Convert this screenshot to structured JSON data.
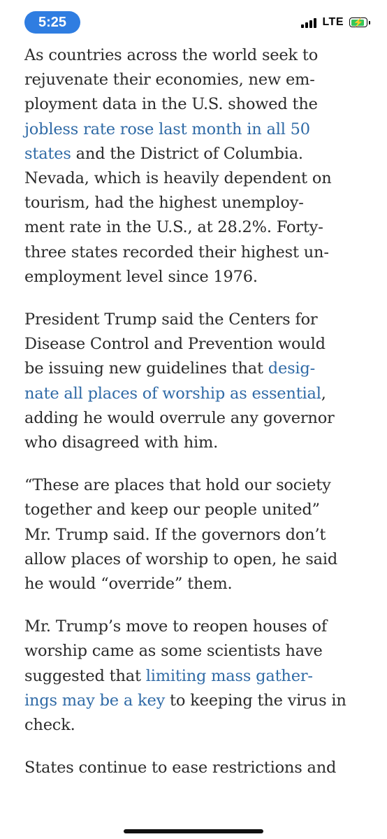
{
  "status_bar": {
    "time": "5:25",
    "network": "LTE",
    "battery_color": "#35c759",
    "battery_level": 0.9,
    "signal_bars": 4
  },
  "colors": {
    "link": "#2f6aa6",
    "text": "#2a2a2a",
    "time_pill": "#2f7de1"
  },
  "paragraphs": [
    [
      [
        {
          "t": "As countries across the world seek to"
        }
      ],
      [
        {
          "t": "rejuvenate their economies, new em-"
        }
      ],
      [
        {
          "t": "ployment data in the U.S. showed the"
        }
      ],
      [
        {
          "t": "jobless rate rose last month in all 50",
          "link": true
        }
      ],
      [
        {
          "t": "states",
          "link": true
        },
        {
          "t": " and the District of Columbia."
        }
      ],
      [
        {
          "t": "Nevada, which is heavily dependent on"
        }
      ],
      [
        {
          "t": "tourism, had the highest unemploy-"
        }
      ],
      [
        {
          "t": "ment rate in the U.S., at 28.2%. Forty-"
        }
      ],
      [
        {
          "t": "three states recorded their highest un-"
        }
      ],
      [
        {
          "t": "employment level since 1976."
        }
      ]
    ],
    [
      [
        {
          "t": "President Trump said the Centers for"
        }
      ],
      [
        {
          "t": "Disease Control and Prevention would"
        }
      ],
      [
        {
          "t": "be issuing new guidelines that "
        },
        {
          "t": "desig-",
          "link": true
        }
      ],
      [
        {
          "t": "nate all places of worship as essential",
          "link": true
        },
        {
          "t": ","
        }
      ],
      [
        {
          "t": "adding he would overrule any governor"
        }
      ],
      [
        {
          "t": "who disagreed with him."
        }
      ]
    ],
    [
      [
        {
          "t": "“These are places that hold our society"
        }
      ],
      [
        {
          "t": "together and keep our people united”"
        }
      ],
      [
        {
          "t": "Mr. Trump said. If the governors don’t"
        }
      ],
      [
        {
          "t": "allow places of worship to open, he said"
        }
      ],
      [
        {
          "t": "he would “override” them."
        }
      ]
    ],
    [
      [
        {
          "t": "Mr. Trump’s move to reopen houses of"
        }
      ],
      [
        {
          "t": "worship came as some scientists have"
        }
      ],
      [
        {
          "t": "suggested that "
        },
        {
          "t": "limiting mass gather-",
          "link": true
        }
      ],
      [
        {
          "t": "ings may be a key",
          "link": true
        },
        {
          "t": " to keeping the virus in"
        }
      ],
      [
        {
          "t": "check."
        }
      ]
    ],
    [
      [
        {
          "t": "States continue to ease restrictions and"
        }
      ]
    ]
  ]
}
